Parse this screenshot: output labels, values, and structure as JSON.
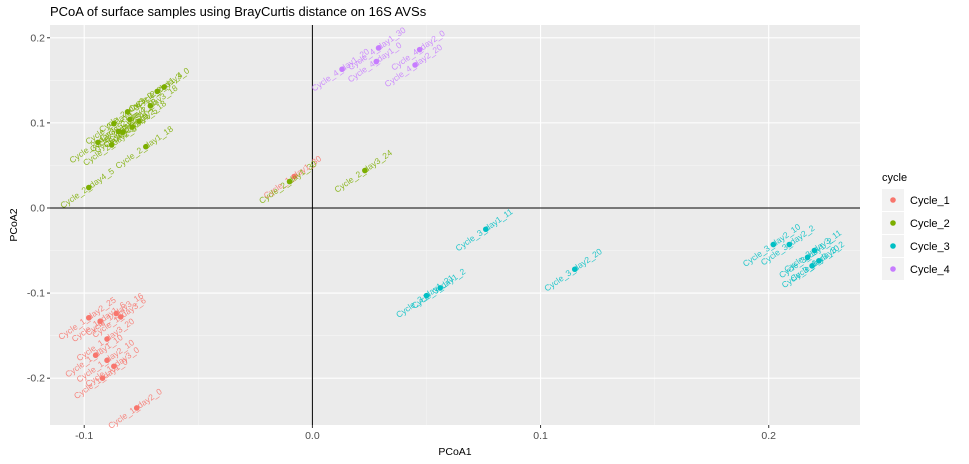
{
  "chart_data": {
    "type": "scatter",
    "title": "PCoA of surface samples using BrayCurtis distance on 16S AVSs",
    "xlabel": "PCoA1",
    "ylabel": "PCoA2",
    "xlim": [
      -0.115,
      0.24
    ],
    "ylim": [
      -0.255,
      0.215
    ],
    "x_ticks": [
      -0.1,
      0.0,
      0.1,
      0.2
    ],
    "x_tick_labels": [
      "-0.1",
      "0.0",
      "0.1",
      "0.2"
    ],
    "y_ticks": [
      -0.2,
      -0.1,
      0.0,
      0.1,
      0.2
    ],
    "y_tick_labels": [
      "-0.2",
      "-0.1",
      "0.0",
      "0.1",
      "0.2"
    ],
    "reference_lines": {
      "x": 0,
      "y": 0
    },
    "grid": true,
    "legend": {
      "title": "cycle",
      "position": "right",
      "entries": [
        "Cycle_1",
        "Cycle_2",
        "Cycle_3",
        "Cycle_4"
      ]
    },
    "colors": {
      "Cycle_1": "#F8766D",
      "Cycle_2": "#7CAE00",
      "Cycle_3": "#00BFC4",
      "Cycle_4": "#C77CFF"
    },
    "series": [
      {
        "name": "Cycle_1",
        "points": [
          {
            "x": -0.098,
            "y": -0.129,
            "label": "Cycle_1_day2_25"
          },
          {
            "x": -0.093,
            "y": -0.133,
            "label": "Cycle_1_day1_6"
          },
          {
            "x": -0.086,
            "y": -0.124,
            "label": "Cycle_1_day3_16"
          },
          {
            "x": -0.084,
            "y": -0.128,
            "label": "Cycle_1_day3_6"
          },
          {
            "x": -0.09,
            "y": -0.154,
            "label": "Cycle_1_day3_20"
          },
          {
            "x": -0.095,
            "y": -0.173,
            "label": "Cycle_1_day1_10"
          },
          {
            "x": -0.09,
            "y": -0.179,
            "label": "Cycle_1_day2_10"
          },
          {
            "x": -0.087,
            "y": -0.186,
            "label": "Cycle_1_day3_0"
          },
          {
            "x": -0.092,
            "y": -0.2,
            "label": "Cycle_1_day1_0"
          },
          {
            "x": -0.077,
            "y": -0.235,
            "label": "Cycle_1_day2_0"
          },
          {
            "x": -0.008,
            "y": 0.037,
            "label": "Cycle_1_day1_30"
          }
        ]
      },
      {
        "name": "Cycle_2",
        "points": [
          {
            "x": -0.098,
            "y": 0.024,
            "label": "Cycle_2_day4_5"
          },
          {
            "x": -0.094,
            "y": 0.077,
            "label": "Cycle_2_day3_5"
          },
          {
            "x": -0.088,
            "y": 0.074,
            "label": "Cycle_2_day2_5"
          },
          {
            "x": -0.087,
            "y": 0.099,
            "label": "Cycle_2_day4_0"
          },
          {
            "x": -0.085,
            "y": 0.09,
            "label": "Cycle_2_day2_0"
          },
          {
            "x": -0.083,
            "y": 0.089,
            "label": "Cycle_2_day1_0"
          },
          {
            "x": -0.081,
            "y": 0.113,
            "label": "Cycle_2_day3_0"
          },
          {
            "x": -0.08,
            "y": 0.104,
            "label": "Cycle_2_day4_18"
          },
          {
            "x": -0.079,
            "y": 0.095,
            "label": "Cycle_2_day1_5"
          },
          {
            "x": -0.076,
            "y": 0.102,
            "label": "Cycle_2_day2_18"
          },
          {
            "x": -0.073,
            "y": 0.072,
            "label": "Cycle_2_day1_18"
          },
          {
            "x": -0.071,
            "y": 0.12,
            "label": "Cycle_2_day3_18"
          },
          {
            "x": -0.068,
            "y": 0.137,
            "label": "Cycle_2_day1_4"
          },
          {
            "x": -0.065,
            "y": 0.142,
            "label": "Cycle_2_day3_0"
          },
          {
            "x": -0.01,
            "y": 0.031,
            "label": "Cycle_2_day1_30"
          },
          {
            "x": 0.023,
            "y": 0.044,
            "label": "Cycle_2_day3_24"
          }
        ]
      },
      {
        "name": "Cycle_3",
        "points": [
          {
            "x": 0.076,
            "y": -0.025,
            "label": "Cycle_3_day1_11"
          },
          {
            "x": 0.05,
            "y": -0.103,
            "label": "Cycle_3_day1_21"
          },
          {
            "x": 0.056,
            "y": -0.094,
            "label": "Cycle_3_day1_2"
          },
          {
            "x": 0.115,
            "y": -0.072,
            "label": "Cycle_3_day2_20"
          },
          {
            "x": 0.202,
            "y": -0.043,
            "label": "Cycle_3_day2_10"
          },
          {
            "x": 0.209,
            "y": -0.043,
            "label": "Cycle_3_day2_2"
          },
          {
            "x": 0.217,
            "y": -0.058,
            "label": "Cycle_3_day1_2"
          },
          {
            "x": 0.219,
            "y": -0.068,
            "label": "Cycle_3_day3_10"
          },
          {
            "x": 0.22,
            "y": -0.05,
            "label": "Cycle_3_day3_11"
          },
          {
            "x": 0.222,
            "y": -0.062,
            "label": "Cycle_3_day3_2"
          }
        ]
      },
      {
        "name": "Cycle_4",
        "points": [
          {
            "x": 0.013,
            "y": 0.163,
            "label": "Cycle_4_day1_20"
          },
          {
            "x": 0.029,
            "y": 0.188,
            "label": "Cycle_4_day1_30"
          },
          {
            "x": 0.028,
            "y": 0.172,
            "label": "Cycle_4_day1_0"
          },
          {
            "x": 0.045,
            "y": 0.168,
            "label": "Cycle_4_day2_20"
          },
          {
            "x": 0.047,
            "y": 0.186,
            "label": "Cycle_4_day2_0"
          }
        ]
      }
    ]
  }
}
